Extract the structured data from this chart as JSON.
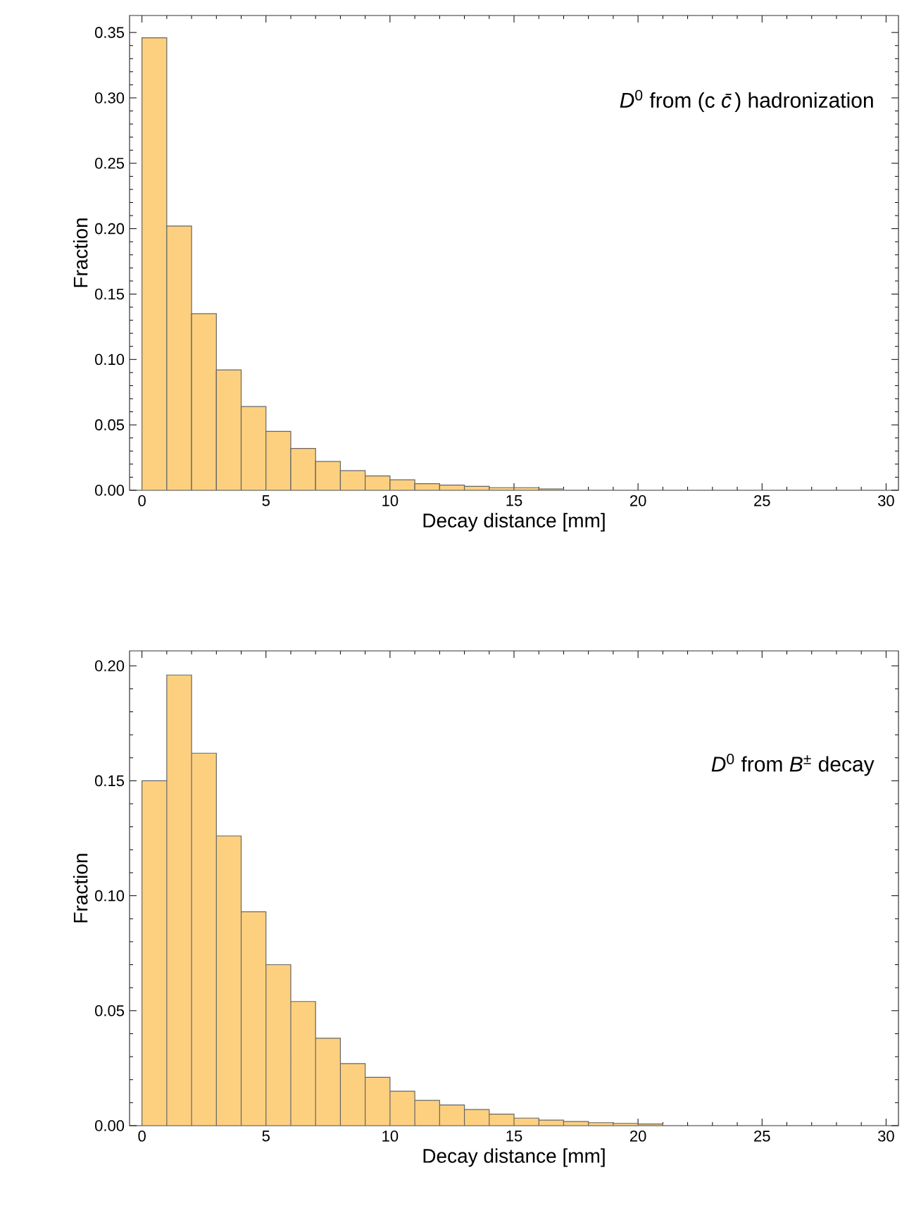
{
  "chart_data": [
    {
      "type": "histogram",
      "xlabel": "Decay distance [mm]",
      "ylabel": "Fraction",
      "color": "#fdd07f",
      "bins": [
        0,
        1,
        2,
        3,
        4,
        5,
        6,
        7,
        8,
        9,
        10,
        11,
        12,
        13,
        14,
        15,
        16,
        17,
        18,
        19,
        20,
        21,
        22,
        23,
        24,
        25,
        26,
        27,
        28,
        29,
        30
      ],
      "values": [
        0.346,
        0.202,
        0.135,
        0.092,
        0.064,
        0.045,
        0.032,
        0.022,
        0.015,
        0.011,
        0.008,
        0.005,
        0.004,
        0.003,
        0.002,
        0.002,
        0.001,
        0.001,
        null,
        null,
        null,
        null,
        null,
        null,
        null,
        null,
        null,
        null,
        null,
        null
      ],
      "xlim": [
        -0.5,
        30.5
      ],
      "ylim": [
        0,
        0.363
      ],
      "xticks": [
        0,
        5,
        10,
        15,
        20,
        25,
        30
      ],
      "yticks": [
        {
          "value": 0,
          "label": "0.00"
        },
        {
          "value": 0.05,
          "label": "0.05"
        },
        {
          "value": 0.1,
          "label": "0.10"
        },
        {
          "value": 0.15,
          "label": "0.15"
        },
        {
          "value": 0.2,
          "label": "0.20"
        },
        {
          "value": 0.25,
          "label": "0.25"
        },
        {
          "value": 0.3,
          "label": "0.30"
        },
        {
          "value": 0.35,
          "label": "0.35"
        }
      ],
      "annotations": [
        "*D*$^{0}$ from (c *c̄*) hadronization"
      ]
    },
    {
      "type": "histogram",
      "xlabel": "Decay distance [mm]",
      "ylabel": "Fraction",
      "color": "#fdd07f",
      "bins": [
        0,
        1,
        2,
        3,
        4,
        5,
        6,
        7,
        8,
        9,
        10,
        11,
        12,
        13,
        14,
        15,
        16,
        17,
        18,
        19,
        20,
        21,
        22,
        23,
        24,
        25,
        26,
        27,
        28,
        29,
        30
      ],
      "values": [
        0.15,
        0.196,
        0.162,
        0.126,
        0.093,
        0.07,
        0.054,
        0.038,
        0.027,
        0.021,
        0.015,
        0.011,
        0.009,
        0.007,
        0.005,
        0.0033,
        0.0024,
        0.0018,
        0.0013,
        0.001,
        0.0007,
        0.0005,
        null,
        null,
        null,
        null,
        null,
        null,
        null,
        null
      ],
      "xlim": [
        -0.5,
        30.5
      ],
      "ylim": [
        0,
        0.2065
      ],
      "xticks": [
        0,
        5,
        10,
        15,
        20,
        25,
        30
      ],
      "yticks": [
        {
          "value": 0,
          "label": "0.00"
        },
        {
          "value": 0.05,
          "label": "0.05"
        },
        {
          "value": 0.1,
          "label": "0.10"
        },
        {
          "value": 0.15,
          "label": "0.15"
        },
        {
          "value": 0.2,
          "label": "0.20"
        }
      ],
      "annotations": [
        "*D*$^{0}$ from *B*$^{±}$ decay"
      ]
    }
  ]
}
